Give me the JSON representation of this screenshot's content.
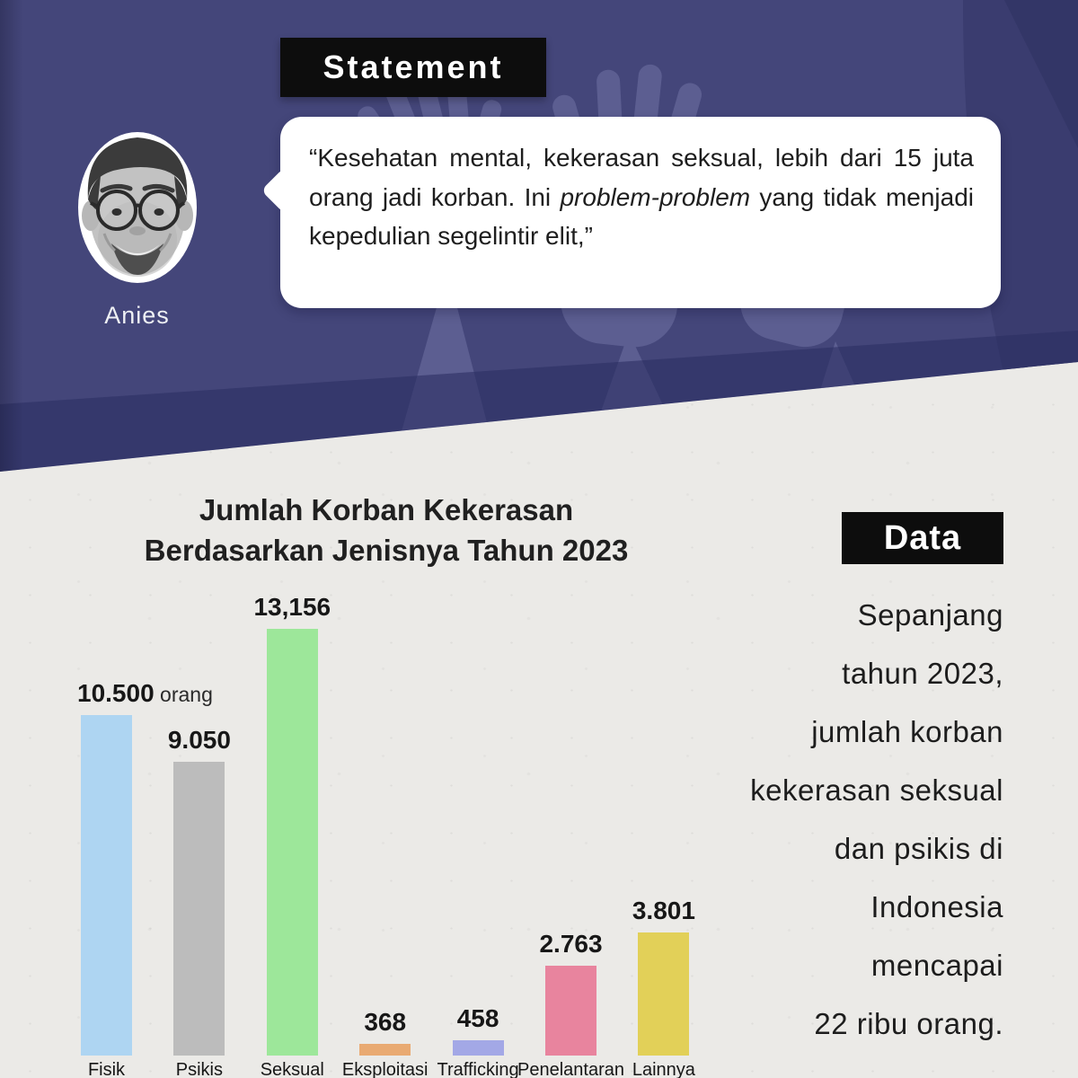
{
  "statement_section": {
    "label": "Statement",
    "speaker": "Anies",
    "quote": {
      "part1": "“Kesehatan mental, kekerasan seksual, lebih dari 15 juta orang jadi korban. Ini ",
      "italic": "problem-problem",
      "part2": " yang tidak menjadi kepedulian segelintir elit,”"
    }
  },
  "chart_data": {
    "type": "bar",
    "title": "Jumlah Korban Kekerasan Berdasarkan Jenisnya Tahun 2023",
    "title_lines": [
      "Jumlah Korban Kekerasan",
      "Berdasarkan Jenisnya Tahun 2023"
    ],
    "categories": [
      "Fisik",
      "Psikis",
      "Seksual",
      "Eksploitasi",
      "Trafficking",
      "Penelantaran",
      "Lainnya"
    ],
    "values": [
      10500,
      9050,
      13156,
      368,
      458,
      2763,
      3801
    ],
    "value_labels": [
      "10.500",
      "9.050",
      "13,156",
      "368",
      "458",
      "2.763",
      "3.801"
    ],
    "value_suffixes": [
      "orang",
      "",
      "",
      "",
      "",
      "",
      ""
    ],
    "bar_colors": [
      "#aed5f2",
      "#bcbcbc",
      "#9de79a",
      "#e9aa72",
      "#a3a8e6",
      "#e8849e",
      "#e2d058"
    ],
    "unit": "orang",
    "ylim": [
      0,
      13156
    ],
    "grid": false,
    "legend": "none",
    "xlabel": "",
    "ylabel": ""
  },
  "data_section": {
    "label": "Data",
    "lines": [
      "Sepanjang",
      "tahun 2023,",
      "jumlah korban",
      "kekerasan seksual",
      "dan psikis di",
      "Indonesia",
      "mencapai",
      "22 ribu orang."
    ],
    "text": "Sepanjang tahun 2023, jumlah korban kekerasan seksual dan psikis di Indonesia mencapai 22 ribu orang."
  },
  "colors": {
    "navy_bg": "#44467a",
    "paper_bg": "#ebeae7",
    "label_box_bg": "#0d0d0d",
    "label_text": "#ffffff",
    "text_dark": "#1d1d1d"
  }
}
